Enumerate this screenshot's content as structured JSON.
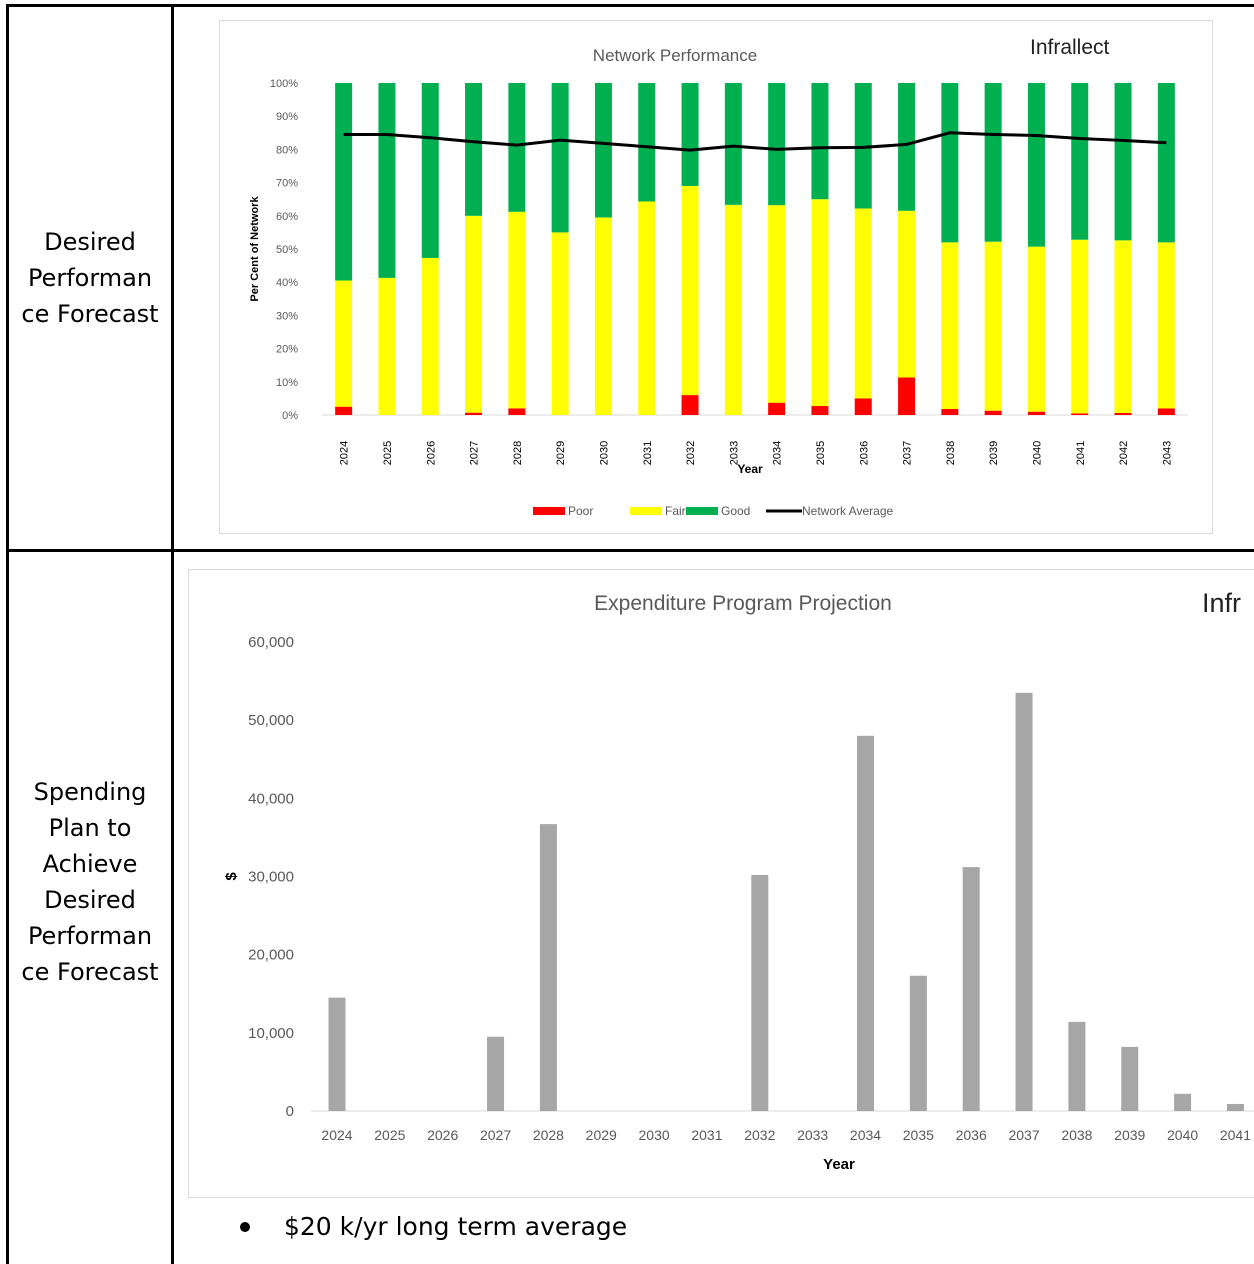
{
  "rows": [
    {
      "label": "Desired\nPerforman\nce Forecast"
    },
    {
      "label": "Spending\nPlan to\nAchieve\nDesired\nPerforman\nce Forecast"
    }
  ],
  "note": "$20 k/yr long term average",
  "colors": {
    "poor": "#ff0000",
    "fair": "#ffff00",
    "good": "#00b050",
    "avg": "#000000",
    "spend": "#a6a6a6"
  },
  "chart_data": [
    {
      "type": "bar",
      "stacked": true,
      "title": "Network Performance",
      "brand": "Infrallect",
      "xlabel": "Year",
      "ylabel": "Per Cent of Network",
      "ylim": [
        0,
        100
      ],
      "yticks": [
        "0%",
        "10%",
        "20%",
        "30%",
        "40%",
        "50%",
        "60%",
        "70%",
        "80%",
        "90%",
        "100%"
      ],
      "categories": [
        "2024",
        "2025",
        "2026",
        "2027",
        "2028",
        "2029",
        "2030",
        "2031",
        "2032",
        "2033",
        "2034",
        "2035",
        "2036",
        "2037",
        "2038",
        "2039",
        "2040",
        "2041",
        "2042",
        "2043"
      ],
      "series": [
        {
          "name": "Poor",
          "values": [
            2.5,
            0,
            0,
            0.7,
            2,
            0,
            0,
            0,
            6,
            0,
            3.7,
            2.7,
            5,
            11.3,
            1.8,
            1.3,
            1,
            0.5,
            0.6,
            2
          ]
        },
        {
          "name": "Fair",
          "values": [
            38,
            41.3,
            47.3,
            59.3,
            59.2,
            55,
            59.5,
            64.3,
            63,
            63.3,
            59.5,
            62.3,
            57.2,
            50.2,
            50.2,
            50.9,
            49.7,
            52.3,
            52,
            50
          ]
        },
        {
          "name": "Good",
          "values": [
            59.5,
            58.7,
            52.7,
            40,
            38.8,
            45,
            40.5,
            35.7,
            31,
            36.7,
            36.8,
            35,
            37.8,
            38.5,
            48,
            47.8,
            49.3,
            47.2,
            47.4,
            48
          ]
        },
        {
          "name": "Network Average",
          "type": "line",
          "values": [
            84.5,
            84.5,
            83.5,
            82.3,
            81.3,
            82.8,
            81.8,
            80.8,
            79.8,
            81,
            80,
            80.5,
            80.6,
            81.5,
            85,
            84.5,
            84.2,
            83.3,
            82.7,
            82
          ]
        }
      ],
      "legend": "bottom"
    },
    {
      "type": "bar",
      "title": "Expenditure Program Projection",
      "brand": "Infr",
      "xlabel": "Year",
      "ylabel": "$",
      "ylim": [
        0,
        60000
      ],
      "yticks": [
        "0",
        "10,000",
        "20,000",
        "30,000",
        "40,000",
        "50,000",
        "60,000"
      ],
      "categories": [
        "2024",
        "2025",
        "2026",
        "2027",
        "2028",
        "2029",
        "2030",
        "2031",
        "2032",
        "2033",
        "2034",
        "2035",
        "2036",
        "2037",
        "2038",
        "2039",
        "2040",
        "2041"
      ],
      "values": [
        14500,
        0,
        0,
        9500,
        36700,
        0,
        0,
        0,
        30200,
        0,
        48000,
        17300,
        31200,
        53500,
        11400,
        8200,
        2200,
        900
      ]
    }
  ]
}
